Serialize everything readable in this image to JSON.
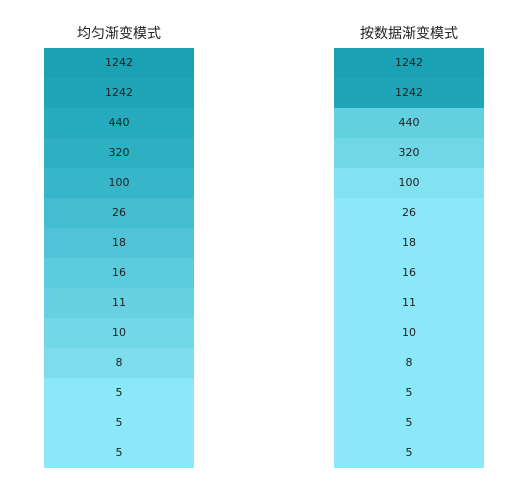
{
  "panels": [
    {
      "title": "均匀渐变模式",
      "cells": [
        {
          "value": "1242",
          "color": "#1aa1b4"
        },
        {
          "value": "1242",
          "color": "#1ea5b8"
        },
        {
          "value": "440",
          "color": "#26aabd"
        },
        {
          "value": "320",
          "color": "#2eb0c3"
        },
        {
          "value": "100",
          "color": "#38b6c9"
        },
        {
          "value": "26",
          "color": "#44bdd0"
        },
        {
          "value": "18",
          "color": "#50c4d6"
        },
        {
          "value": "16",
          "color": "#5ccbdd"
        },
        {
          "value": "11",
          "color": "#67d1e3"
        },
        {
          "value": "10",
          "color": "#72d7e8"
        },
        {
          "value": "8",
          "color": "#7ddded"
        },
        {
          "value": "5",
          "color": "#8ae8f8"
        },
        {
          "value": "5",
          "color": "#8ae8f8"
        },
        {
          "value": "5",
          "color": "#8ae8f8"
        }
      ]
    },
    {
      "title": "按数据渐变模式",
      "cells": [
        {
          "value": "1242",
          "color": "#1aa1b4"
        },
        {
          "value": "1242",
          "color": "#1ea5b8"
        },
        {
          "value": "440",
          "color": "#63d0e0"
        },
        {
          "value": "320",
          "color": "#6fd7e6"
        },
        {
          "value": "100",
          "color": "#82e2f1"
        },
        {
          "value": "26",
          "color": "#8ae8f8"
        },
        {
          "value": "18",
          "color": "#8ae8f8"
        },
        {
          "value": "16",
          "color": "#8ae8f8"
        },
        {
          "value": "11",
          "color": "#8ae8f8"
        },
        {
          "value": "10",
          "color": "#8ae8f8"
        },
        {
          "value": "8",
          "color": "#8ae8f8"
        },
        {
          "value": "5",
          "color": "#8ae8f8"
        },
        {
          "value": "5",
          "color": "#8ae8f8"
        },
        {
          "value": "5",
          "color": "#8ae8f8"
        }
      ]
    }
  ]
}
